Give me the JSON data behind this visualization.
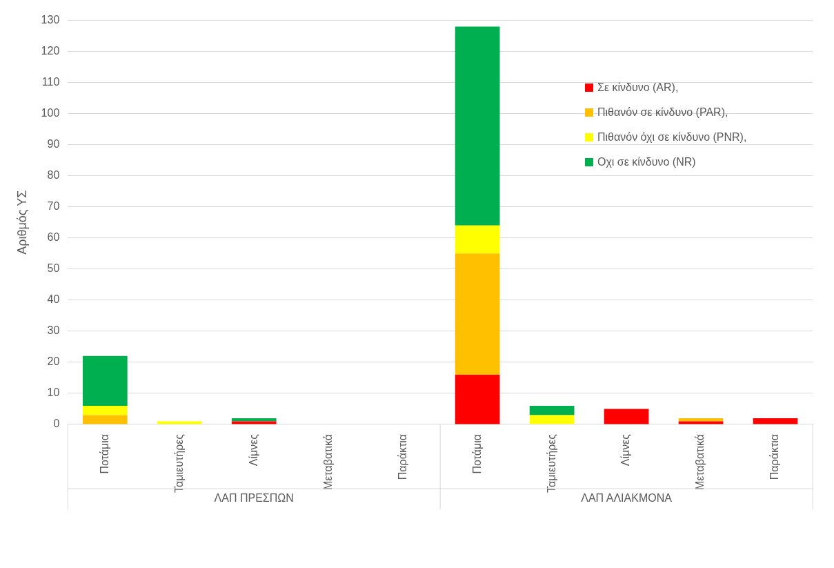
{
  "chart_data": {
    "type": "bar",
    "stacked": true,
    "ylabel": "Αριθμός ΥΣ",
    "categories": [
      "Ποτάμια",
      "Ταμιευτήρες",
      "Λίμνες",
      "Μεταβατικά",
      "Παράκτια",
      "Ποτάμια",
      "Ταμιευτήρες",
      "Λίμνες",
      "Μεταβατικά",
      "Παράκτια"
    ],
    "series": [
      {
        "name": "Σε κίνδυνο (AR),",
        "color": "#ff0000",
        "values": [
          0,
          0,
          1,
          0,
          0,
          16,
          0,
          5,
          1,
          2
        ]
      },
      {
        "name": "Πιθανόν σε κίνδυνο (PAR),",
        "color": "#ffc000",
        "values": [
          3,
          0,
          0,
          0,
          0,
          39,
          0,
          0,
          1,
          0
        ]
      },
      {
        "name": "Πιθανόν όχι σε κίνδυνο (PNR),",
        "color": "#ffff00",
        "values": [
          3,
          1,
          0,
          0,
          0,
          9,
          3,
          0,
          0,
          0
        ]
      },
      {
        "name": "Οχι σε κίνδυνο (NR)",
        "color": "#00b050",
        "values": [
          16,
          0,
          1,
          0,
          0,
          64,
          3,
          0,
          0,
          0
        ]
      }
    ],
    "ylim": [
      0,
      130
    ],
    "yticks": [
      0,
      10,
      20,
      30,
      40,
      50,
      60,
      70,
      80,
      90,
      100,
      110,
      120,
      130
    ],
    "grid": "y",
    "legend": "top right",
    "annotations": [
      "ΛΑΠ ΠΡΕΣΠΩΝ",
      "ΛΑΠ ΑΛΙΑΚΜΟΝΑ"
    ]
  }
}
